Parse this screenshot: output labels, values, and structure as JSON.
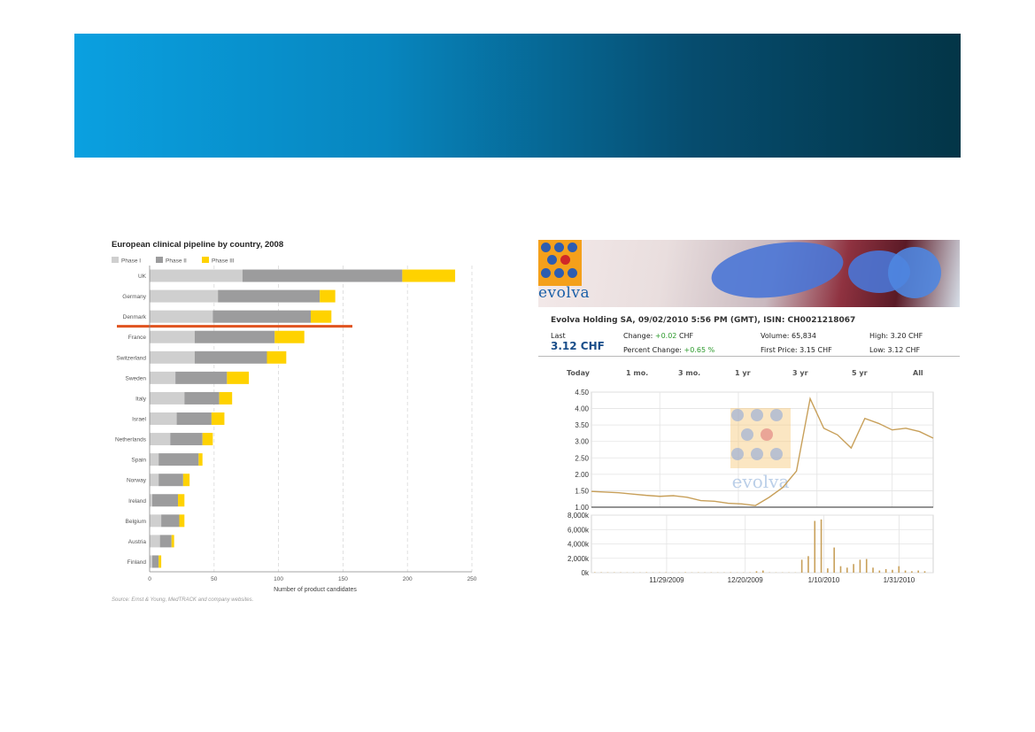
{
  "pipeline": {
    "chart_data": {
      "type": "bar",
      "orientation": "horizontal",
      "stacked": true,
      "title": "European clinical pipeline by country, 2008",
      "categories": [
        "UK",
        "Germany",
        "Denmark",
        "France",
        "Switzerland",
        "Sweden",
        "Italy",
        "Israel",
        "Netherlands",
        "Spain",
        "Norway",
        "Ireland",
        "Belgium",
        "Austria",
        "Finland"
      ],
      "series": [
        {
          "name": "Phase I",
          "color": "#cfcfcf",
          "values": [
            72,
            53,
            49,
            35,
            35,
            20,
            27,
            21,
            16,
            7,
            7,
            2,
            9,
            8,
            2
          ]
        },
        {
          "name": "Phase II",
          "color": "#9c9c9d",
          "values": [
            124,
            79,
            76,
            62,
            56,
            40,
            27,
            27,
            25,
            31,
            19,
            20,
            14,
            9,
            5
          ]
        },
        {
          "name": "Phase III",
          "color": "#ffd200",
          "values": [
            41,
            12,
            16,
            23,
            15,
            17,
            10,
            10,
            8,
            3,
            5,
            5,
            4,
            2,
            2
          ]
        }
      ],
      "xlabel": "Number of product candidates",
      "xlim": [
        0,
        250
      ],
      "xticks": [
        "0",
        "50",
        "100",
        "150",
        "200",
        "250"
      ],
      "grid": "vertical dashed",
      "legend": "top-left",
      "highlight_line_after": "Denmark",
      "highlight_color": "#e0531f",
      "source": "Source: Ernst & Young, MedTRACK and company websites."
    }
  },
  "stock": {
    "logo_text": "evolva",
    "header": "Evolva Holding SA, 09/02/2010  5:56 PM (GMT), ISIN: CH0021218067",
    "last_label": "Last",
    "last_value": "3.12 CHF",
    "change_label": "Change:",
    "change_value": "+0.02",
    "change_unit": "CHF",
    "pct_label": "Percent Change:",
    "pct_value": "+0.65 %",
    "volume": "Volume: 65,834",
    "first_price": "First Price: 3.15 CHF",
    "high": "High: 3.20 CHF",
    "low": "Low: 3.12 CHF",
    "tabs": [
      "Today",
      "1 mo.",
      "3 mo.",
      "1 yr",
      "3 yr",
      "5 yr",
      "All"
    ],
    "chart_data": [
      {
        "type": "line",
        "ylim": [
          1.0,
          4.5
        ],
        "yticks": [
          "4.50",
          "4.00",
          "3.50",
          "3.00",
          "2.50",
          "2.00",
          "1.50",
          "1.00"
        ],
        "line_color": "#c8a05a",
        "watermark": "evolva",
        "x": [
          0,
          4,
          8,
          12,
          16,
          20,
          24,
          28,
          32,
          36,
          40,
          44,
          48,
          52,
          56,
          60,
          64,
          68,
          72,
          76,
          80,
          84,
          88,
          92,
          96,
          100
        ],
        "y": [
          1.48,
          1.46,
          1.44,
          1.4,
          1.36,
          1.33,
          1.35,
          1.3,
          1.2,
          1.18,
          1.12,
          1.1,
          1.05,
          1.3,
          1.6,
          2.1,
          4.3,
          3.4,
          3.2,
          2.8,
          3.7,
          3.55,
          3.35,
          3.4,
          3.3,
          3.1
        ]
      },
      {
        "type": "bar",
        "ylim": [
          0,
          8000
        ],
        "yticks": [
          "8,000k",
          "6,000k",
          "4,000k",
          "2,000k",
          "0k"
        ],
        "xticks": [
          "11/29/2009",
          "12/20/2009",
          "1/10/2010",
          "1/31/2010"
        ],
        "bar_color": "#c8a05a",
        "values": [
          60,
          50,
          40,
          40,
          40,
          30,
          40,
          30,
          50,
          30,
          40,
          40,
          30,
          30,
          60,
          30,
          40,
          30,
          40,
          30,
          30,
          50,
          30,
          30,
          40,
          200,
          300,
          40,
          30,
          30,
          30,
          30,
          1800,
          2300,
          7200,
          7400,
          600,
          3500,
          900,
          700,
          1200,
          1800,
          1900,
          700,
          300,
          500,
          400,
          900,
          300,
          200,
          300,
          200
        ]
      }
    ]
  }
}
